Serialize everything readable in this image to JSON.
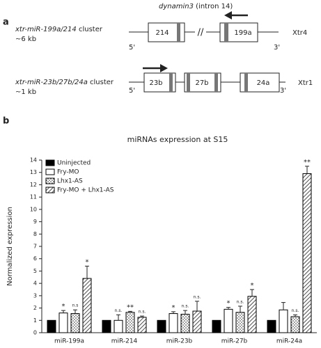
{
  "panel_a": {
    "label": "a",
    "gene": "dynamin3",
    "gene_note": "(intron 14)",
    "clusters": [
      {
        "name": "xtr-miR-199a/214",
        "kind": "cluster",
        "size": "~6 kb",
        "chromosome": "Xtr4",
        "boxes": [
          "214",
          "199a"
        ],
        "break": "//",
        "five": "5'",
        "three": "3'"
      },
      {
        "name": "xtr-miR-23b/27b/24a",
        "kind": "cluster",
        "size": "~1 kb",
        "chromosome": "Xtr1",
        "boxes": [
          "23b",
          "27b",
          "24a"
        ],
        "five": "5'",
        "three": "3'"
      }
    ]
  },
  "panel_b_label": "b",
  "chart_data": {
    "type": "bar",
    "title": "miRNAs expression at S15",
    "y_label": "Normalized expression",
    "categories": [
      "miR-199a",
      "miR-214",
      "miR-23b",
      "miR-27b",
      "miR-24a"
    ],
    "series": [
      {
        "name": "Uninjected",
        "color": "#000000",
        "pattern": "solid",
        "values": [
          1,
          1,
          1,
          1,
          1
        ],
        "errors": [
          0,
          0,
          0,
          0,
          0
        ],
        "significance": [
          null,
          null,
          null,
          null,
          null
        ]
      },
      {
        "name": "Fry-MO",
        "color": "#000000",
        "pattern": "open",
        "values": [
          1.6,
          1.0,
          1.55,
          1.9,
          1.85
        ],
        "errors": [
          0.2,
          0.45,
          0.15,
          0.15,
          0.6
        ],
        "significance": [
          "*",
          "n.s.",
          "*",
          "*",
          null
        ]
      },
      {
        "name": "Lhx1-AS",
        "color": "#000000",
        "pattern": "dots",
        "values": [
          1.55,
          1.65,
          1.5,
          1.65,
          1.3
        ],
        "errors": [
          0.3,
          0.08,
          0.3,
          0.5,
          0.15
        ],
        "significance": [
          "n.s",
          "**",
          "n.s.",
          "n.s.",
          "n.s."
        ]
      },
      {
        "name": "Fry-MO + Lhx1-AS",
        "color": "#000000",
        "pattern": "hatch",
        "values": [
          4.4,
          1.25,
          1.75,
          2.95,
          12.9
        ],
        "errors": [
          1.0,
          0.1,
          0.8,
          0.55,
          0.6
        ],
        "significance": [
          "*",
          "n.s.",
          "n.s.",
          "*",
          "**"
        ]
      }
    ],
    "ylim": [
      0,
      14
    ],
    "yticks": [
      0,
      1,
      2,
      3,
      4,
      5,
      6,
      7,
      8,
      9,
      10,
      11,
      12,
      13,
      14
    ],
    "legend": "upper left"
  }
}
